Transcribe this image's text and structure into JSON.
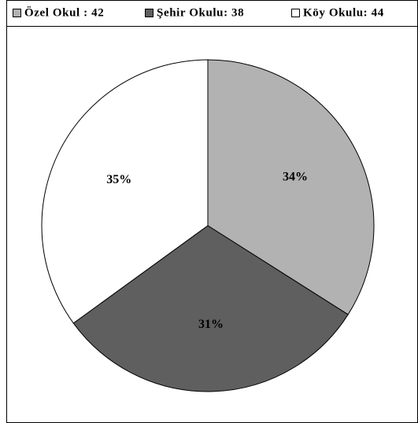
{
  "chart_data": {
    "type": "pie",
    "categories": [
      "Özel Okul : 42",
      "Şehir Okulu: 38",
      "Köy Okulu: 44"
    ],
    "values": [
      34,
      31,
      35
    ],
    "value_labels": [
      "34%",
      "31%",
      "35%"
    ],
    "colors": [
      "#b2b2b2",
      "#5f5f5f",
      "#ffffff"
    ],
    "legend": "top"
  }
}
